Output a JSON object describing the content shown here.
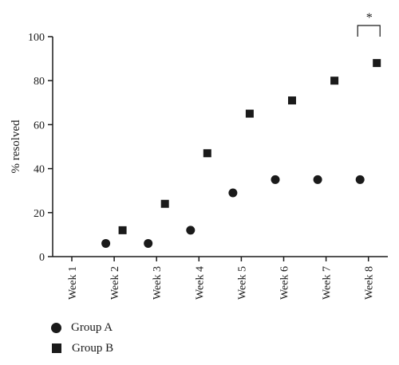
{
  "chart_data": {
    "type": "scatter",
    "title": "",
    "xlabel": "",
    "ylabel": "% resolved",
    "categories": [
      "Week 1",
      "Week 2",
      "Week 3",
      "Week 4",
      "Week 5",
      "Week 6",
      "Week 7",
      "Week 8"
    ],
    "ylim": [
      0,
      100
    ],
    "yticks": [
      "0",
      "20",
      "40",
      "60",
      "80",
      "100"
    ],
    "grid": false,
    "legend_position": "bottom-left",
    "series": [
      {
        "name": "Group A",
        "marker": "circle",
        "color": "#1a1a1a",
        "points": [
          {
            "x": "Week 2",
            "y": 6
          },
          {
            "x": "Week 3",
            "y": 6
          },
          {
            "x": "Week 4",
            "y": 12
          },
          {
            "x": "Week 5",
            "y": 29
          },
          {
            "x": "Week 6",
            "y": 35
          },
          {
            "x": "Week 7",
            "y": 35
          },
          {
            "x": "Week 8",
            "y": 35
          }
        ]
      },
      {
        "name": "Group B",
        "marker": "square",
        "color": "#1a1a1a",
        "points": [
          {
            "x": "Week 2",
            "y": 12
          },
          {
            "x": "Week 3",
            "y": 24
          },
          {
            "x": "Week 4",
            "y": 47
          },
          {
            "x": "Week 5",
            "y": 65
          },
          {
            "x": "Week 6",
            "y": 71
          },
          {
            "x": "Week 7",
            "y": 80
          },
          {
            "x": "Week 8",
            "y": 88
          }
        ]
      }
    ],
    "annotation": {
      "text": "*",
      "category": "Week 8",
      "type": "significance-bracket"
    }
  },
  "legend": {
    "group_a": "Group A",
    "group_b": "Group B"
  }
}
